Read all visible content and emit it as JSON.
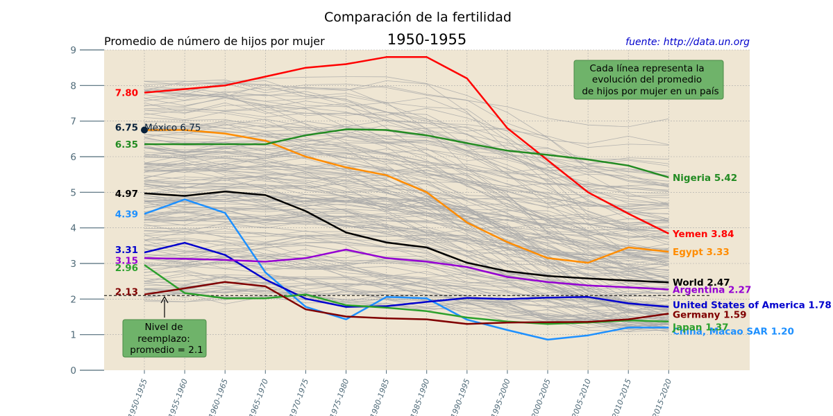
{
  "title": "Comparación de la fertilidad",
  "subtitle": "Promedio de número de hijos por mujer",
  "period_label": "1950-1955",
  "source": "fuente: http://data.un.org",
  "info_box": [
    "Cada línea representa la",
    "evolución del promedio",
    "de hijos por mujer en un país"
  ],
  "replacement_box": [
    "Nivel de",
    "reemplazo:",
    "promedio = 2.1"
  ],
  "colors": {
    "plot_bg": "#efe6d3",
    "grid": "#a8a8a8",
    "background_lines": "#a9a9a9",
    "axis_text": "#4f6a78",
    "box_fill": "#6fb36a",
    "source": "#0000cc"
  },
  "chart_data": {
    "type": "line",
    "ylim": [
      0,
      9
    ],
    "yticks": [
      "0",
      "1",
      "2",
      "3",
      "4",
      "5",
      "6",
      "7",
      "8",
      "9"
    ],
    "categories": [
      "1950-1955",
      "1955-1960",
      "1960-1965",
      "1965-1970",
      "1970-1975",
      "1975-1980",
      "1980-1985",
      "1985-1990",
      "1990-1995",
      "1995-2000",
      "2000-2005",
      "2005-2010",
      "2010-2015",
      "2015-2020"
    ],
    "grid": true,
    "replacement_level": 2.1,
    "highlighted_point": {
      "label": "México 6.75",
      "category": "1950-1955",
      "value": 6.75,
      "color": "#08213a"
    },
    "series": [
      {
        "name": "Yemen",
        "color": "#ff0000",
        "start_label": "7.80",
        "end_label": "Yemen 3.84",
        "values": [
          7.8,
          7.9,
          8.0,
          8.25,
          8.5,
          8.6,
          8.8,
          8.8,
          8.2,
          6.8,
          5.9,
          5.0,
          4.4,
          3.84
        ]
      },
      {
        "name": "Egypt",
        "color": "#ff8c00",
        "start_label": "",
        "end_label": "Egypt 3.33",
        "values": [
          6.75,
          6.75,
          6.65,
          6.45,
          6.0,
          5.7,
          5.48,
          5.0,
          4.15,
          3.6,
          3.15,
          3.02,
          3.45,
          3.33
        ]
      },
      {
        "name": "Nigeria",
        "color": "#228b22",
        "start_label": "6.35",
        "end_label": "Nigeria 5.42",
        "values": [
          6.35,
          6.35,
          6.35,
          6.35,
          6.6,
          6.77,
          6.75,
          6.6,
          6.38,
          6.17,
          6.05,
          5.92,
          5.75,
          5.42
        ]
      },
      {
        "name": "World",
        "color": "#000000",
        "start_label": "4.97",
        "end_label": "World 2.47",
        "values": [
          4.97,
          4.9,
          5.02,
          4.92,
          4.47,
          3.87,
          3.59,
          3.45,
          3.02,
          2.78,
          2.65,
          2.58,
          2.52,
          2.47
        ]
      },
      {
        "name": "China, Macao SAR",
        "color": "#1e90ff",
        "start_label": "4.39",
        "end_label": "China, Macao SAR 1.20",
        "values": [
          4.39,
          4.8,
          4.42,
          2.75,
          1.78,
          1.43,
          2.06,
          2.02,
          1.42,
          1.13,
          0.86,
          0.98,
          1.2,
          1.2
        ]
      },
      {
        "name": "United States of America",
        "color": "#0000cd",
        "start_label": "3.31",
        "end_label": "United States of America 1.78",
        "values": [
          3.31,
          3.58,
          3.24,
          2.55,
          2.01,
          1.78,
          1.8,
          1.92,
          2.03,
          2.0,
          2.04,
          2.06,
          1.88,
          1.78
        ]
      },
      {
        "name": "Argentina",
        "color": "#9400d3",
        "start_label": "3.15",
        "end_label": "Argentina 2.27",
        "values": [
          3.15,
          3.13,
          3.1,
          3.05,
          3.15,
          3.39,
          3.15,
          3.05,
          2.9,
          2.62,
          2.48,
          2.38,
          2.33,
          2.27
        ]
      },
      {
        "name": "Japan",
        "color": "#2ca02c",
        "start_label": "2.96",
        "end_label": "Japan 1.37",
        "values": [
          2.96,
          2.17,
          2.02,
          2.02,
          2.13,
          1.83,
          1.76,
          1.66,
          1.48,
          1.37,
          1.3,
          1.34,
          1.4,
          1.37
        ]
      },
      {
        "name": "Germany",
        "color": "#800000",
        "start_label": "2.13",
        "end_label": "Germany 1.59",
        "values": [
          2.13,
          2.3,
          2.48,
          2.36,
          1.71,
          1.51,
          1.46,
          1.43,
          1.3,
          1.34,
          1.35,
          1.36,
          1.43,
          1.59
        ]
      }
    ]
  }
}
